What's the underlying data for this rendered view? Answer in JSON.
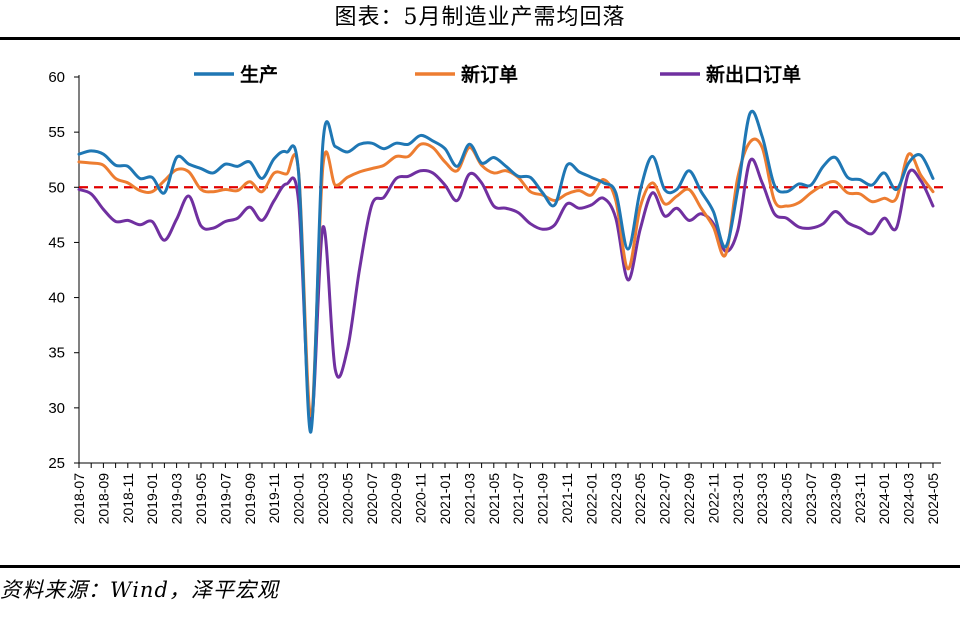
{
  "title": "图表：5月制造业产需均回落",
  "source": "资料来源：Wind，泽平宏观",
  "chart_data": {
    "type": "line",
    "ylim": [
      25,
      60
    ],
    "yticks": [
      25,
      30,
      35,
      40,
      45,
      50,
      55,
      60
    ],
    "xlabels": [
      "2018-07",
      "2018-09",
      "2018-11",
      "2019-01",
      "2019-03",
      "2019-05",
      "2019-07",
      "2019-09",
      "2019-11",
      "2020-01",
      "2020-03",
      "2020-05",
      "2020-07",
      "2020-09",
      "2020-11",
      "2021-01",
      "2021-03",
      "2021-05",
      "2021-07",
      "2021-09",
      "2021-11",
      "2022-01",
      "2022-03",
      "2022-05",
      "2022-07",
      "2022-09",
      "2022-11",
      "2023-01",
      "2023-03",
      "2023-05",
      "2023-07",
      "2023-09",
      "2023-11",
      "2024-01",
      "2024-03",
      "2024-05"
    ],
    "x": [
      "2018-07",
      "2018-08",
      "2018-09",
      "2018-10",
      "2018-11",
      "2018-12",
      "2019-01",
      "2019-02",
      "2019-03",
      "2019-04",
      "2019-05",
      "2019-06",
      "2019-07",
      "2019-08",
      "2019-09",
      "2019-10",
      "2019-11",
      "2019-12",
      "2020-01",
      "2020-02",
      "2020-03",
      "2020-04",
      "2020-05",
      "2020-06",
      "2020-07",
      "2020-08",
      "2020-09",
      "2020-10",
      "2020-11",
      "2020-12",
      "2021-01",
      "2021-02",
      "2021-03",
      "2021-04",
      "2021-05",
      "2021-06",
      "2021-07",
      "2021-08",
      "2021-09",
      "2021-10",
      "2021-11",
      "2021-12",
      "2022-01",
      "2022-02",
      "2022-03",
      "2022-04",
      "2022-05",
      "2022-06",
      "2022-07",
      "2022-08",
      "2022-09",
      "2022-10",
      "2022-11",
      "2022-12",
      "2023-01",
      "2023-02",
      "2023-03",
      "2023-04",
      "2023-05",
      "2023-06",
      "2023-07",
      "2023-08",
      "2023-09",
      "2023-10",
      "2023-11",
      "2023-12",
      "2024-01",
      "2024-02",
      "2024-03",
      "2024-04",
      "2024-05"
    ],
    "reference_line": 50,
    "series": [
      {
        "name": "生产",
        "color": "#1f77b4",
        "values": [
          53.0,
          53.3,
          53.0,
          52.0,
          51.9,
          50.8,
          50.9,
          49.5,
          52.7,
          52.1,
          51.7,
          51.3,
          52.1,
          51.9,
          52.3,
          50.8,
          52.6,
          53.2,
          51.3,
          27.8,
          54.1,
          53.7,
          53.2,
          53.9,
          54.0,
          53.5,
          54.0,
          53.9,
          54.7,
          54.2,
          53.5,
          51.9,
          53.9,
          52.2,
          52.7,
          51.9,
          51.0,
          50.9,
          49.5,
          48.4,
          52.0,
          51.4,
          50.9,
          50.4,
          49.5,
          44.4,
          49.7,
          52.8,
          49.8,
          49.8,
          51.5,
          49.6,
          47.8,
          44.6,
          49.8,
          56.7,
          54.6,
          50.2,
          49.6,
          50.3,
          50.2,
          51.9,
          52.7,
          50.9,
          50.7,
          50.2,
          51.3,
          49.8,
          52.2,
          52.9,
          50.8
        ]
      },
      {
        "name": "新订单",
        "color": "#ed7d31",
        "values": [
          52.3,
          52.2,
          52.0,
          50.8,
          50.4,
          49.7,
          49.6,
          50.6,
          51.6,
          51.4,
          49.8,
          49.6,
          49.8,
          49.7,
          50.5,
          49.6,
          51.3,
          51.2,
          51.4,
          29.3,
          52.0,
          50.2,
          50.9,
          51.4,
          51.7,
          52.0,
          52.8,
          52.8,
          53.9,
          53.6,
          52.3,
          51.5,
          53.6,
          52.0,
          51.3,
          51.5,
          50.9,
          49.6,
          49.3,
          48.8,
          49.4,
          49.7,
          49.3,
          50.7,
          48.8,
          42.6,
          48.2,
          50.4,
          48.5,
          49.2,
          49.8,
          48.1,
          46.4,
          43.9,
          50.9,
          54.1,
          53.6,
          48.8,
          48.3,
          48.6,
          49.5,
          50.2,
          50.5,
          49.5,
          49.4,
          48.7,
          49.0,
          49.0,
          53.0,
          51.1,
          49.6
        ]
      },
      {
        "name": "新出口订单",
        "color": "#7030a0",
        "values": [
          49.8,
          49.4,
          48.0,
          46.9,
          47.0,
          46.6,
          46.9,
          45.2,
          47.1,
          49.2,
          46.5,
          46.3,
          46.9,
          47.2,
          48.2,
          47.0,
          48.8,
          50.3,
          48.7,
          28.7,
          46.4,
          33.5,
          35.3,
          42.6,
          48.4,
          49.1,
          50.8,
          51.0,
          51.5,
          51.3,
          50.2,
          48.8,
          51.2,
          50.4,
          48.3,
          48.1,
          47.7,
          46.7,
          46.2,
          46.6,
          48.5,
          48.1,
          48.4,
          49.0,
          47.2,
          41.6,
          46.2,
          49.5,
          47.4,
          48.1,
          47.0,
          47.6,
          46.7,
          44.2,
          46.1,
          52.4,
          50.4,
          47.6,
          47.2,
          46.4,
          46.3,
          46.7,
          47.8,
          46.8,
          46.3,
          45.8,
          47.2,
          46.3,
          51.3,
          50.6,
          48.3
        ]
      }
    ]
  }
}
